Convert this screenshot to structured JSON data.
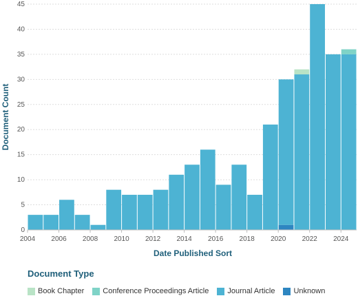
{
  "chart_data": {
    "type": "bar",
    "stacked": true,
    "xlabel": "Date Published Sort",
    "ylabel": "Document Count",
    "ylim": [
      0,
      45
    ],
    "y_ticks": [
      0,
      5,
      10,
      15,
      20,
      25,
      30,
      35,
      40,
      45
    ],
    "x_ticks": [
      "2004",
      "2006",
      "2008",
      "2010",
      "2012",
      "2014",
      "2016",
      "2018",
      "2020",
      "2022",
      "2024"
    ],
    "categories": [
      "2004",
      "2005",
      "2006",
      "2007",
      "2008",
      "2009",
      "2010",
      "2011",
      "2012",
      "2013",
      "2014",
      "2015",
      "2016",
      "2017",
      "2018",
      "2019",
      "2020",
      "2021",
      "2022",
      "2023",
      "2024"
    ],
    "grid": true,
    "legend_title": "Document Type",
    "legend_position": "bottom",
    "series": [
      {
        "name": "Unknown",
        "color": "#2e86c1",
        "values": [
          0,
          0,
          0,
          0,
          0,
          0,
          0,
          0,
          0,
          0,
          0,
          0,
          0,
          0,
          0,
          0,
          1,
          0,
          0,
          0,
          0
        ]
      },
      {
        "name": "Journal Article",
        "color": "#4db3d3",
        "values": [
          3,
          3,
          6,
          3,
          1,
          8,
          7,
          7,
          8,
          11,
          13,
          16,
          9,
          13,
          7,
          21,
          29,
          31,
          45,
          35,
          35
        ]
      },
      {
        "name": "Conference Proceedings Article",
        "color": "#7fd3c7",
        "values": [
          0,
          0,
          0,
          0,
          0,
          0,
          0,
          0,
          0,
          0,
          0,
          0,
          0,
          0,
          0,
          0,
          0,
          0,
          0,
          0,
          1
        ]
      },
      {
        "name": "Book Chapter",
        "color": "#b9e3c6",
        "values": [
          0,
          0,
          0,
          0,
          0,
          0,
          0,
          0,
          0,
          0,
          0,
          0,
          0,
          0,
          0,
          0,
          0,
          1,
          0,
          0,
          0
        ]
      }
    ],
    "legend_order": [
      "Book Chapter",
      "Conference Proceedings Article",
      "Journal Article",
      "Unknown"
    ]
  }
}
